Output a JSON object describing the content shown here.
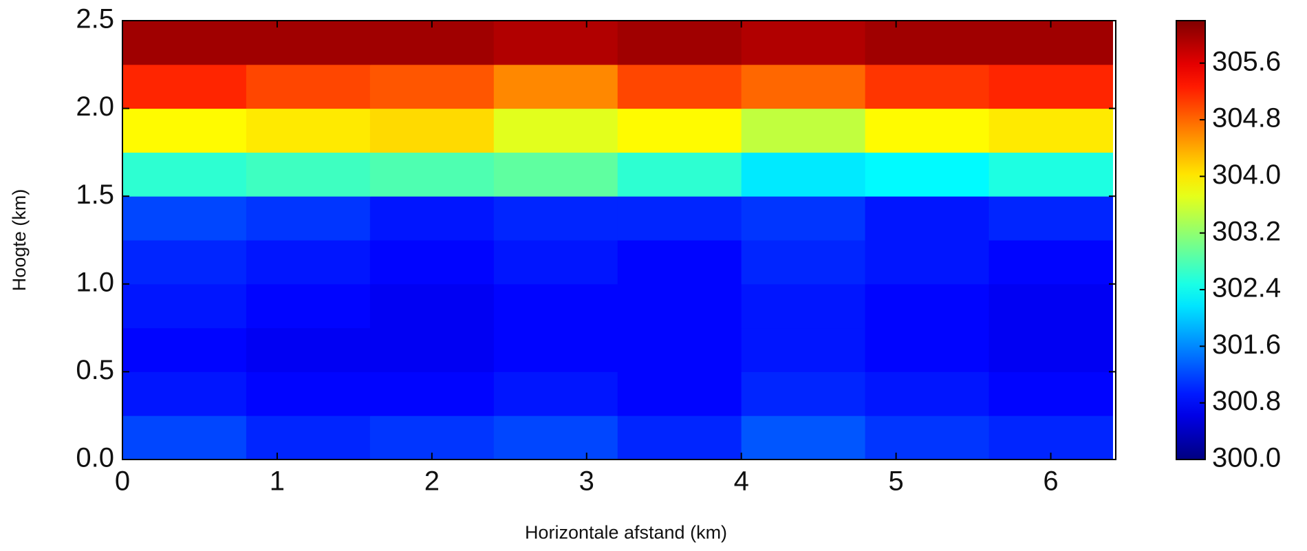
{
  "chart_data": {
    "type": "heatmap",
    "xlabel": "Horizontale afstand (km)",
    "ylabel": "Hoogte (km)",
    "x_bins": [
      0,
      0.8,
      1.6,
      2.4,
      3.2,
      4.0,
      4.8,
      5.6,
      6.4
    ],
    "y_bins": [
      0,
      0.25,
      0.5,
      0.75,
      1.0,
      1.25,
      1.5,
      1.75,
      2.0,
      2.25,
      2.5
    ],
    "z": [
      [
        301.2,
        301.0,
        301.1,
        301.2,
        301.0,
        301.3,
        301.1,
        301.0
      ],
      [
        300.9,
        300.8,
        300.8,
        300.9,
        300.8,
        301.0,
        300.9,
        300.8
      ],
      [
        300.8,
        300.7,
        300.7,
        300.8,
        300.8,
        300.9,
        300.8,
        300.7
      ],
      [
        300.9,
        300.8,
        300.7,
        300.8,
        300.8,
        300.9,
        300.8,
        300.7
      ],
      [
        301.0,
        300.9,
        300.8,
        300.9,
        300.8,
        301.0,
        300.9,
        300.8
      ],
      [
        301.2,
        301.1,
        300.9,
        301.0,
        301.0,
        301.1,
        300.9,
        301.0
      ],
      [
        302.6,
        302.7,
        302.8,
        302.9,
        302.6,
        302.2,
        302.3,
        302.5
      ],
      [
        303.9,
        304.0,
        304.1,
        303.7,
        303.9,
        303.5,
        303.9,
        304.0
      ],
      [
        305.2,
        305.0,
        304.9,
        304.6,
        305.0,
        304.8,
        305.1,
        305.2
      ],
      [
        306.0,
        306.0,
        306.0,
        305.9,
        306.0,
        305.9,
        306.0,
        306.0
      ]
    ],
    "colormap": "jet",
    "xlim": [
      0,
      6.42
    ],
    "ylim": [
      0,
      2.5
    ],
    "zlim": [
      300,
      306.2
    ],
    "xticks": [
      0,
      1,
      2,
      3,
      4,
      5,
      6
    ],
    "yticks": [
      {
        "value": 0,
        "label": "0.0"
      },
      0.5,
      {
        "value": 1,
        "label": "1.0"
      },
      1.5,
      {
        "value": 2,
        "label": "2.0"
      },
      2.5
    ],
    "zticks": [
      {
        "value": 300,
        "label": "300.0"
      },
      300.8,
      301.6,
      302.4,
      303.2,
      {
        "value": 304,
        "label": "304.0"
      },
      304.8,
      305.6
    ]
  }
}
